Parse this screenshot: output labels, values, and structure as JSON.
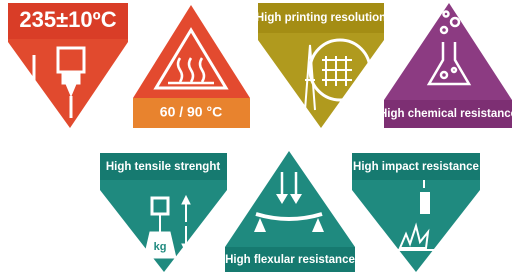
{
  "tiles": [
    {
      "label": "235±10ºC"
    },
    {
      "label": "60 / 90 °C"
    },
    {
      "label": "High printing resolution"
    },
    {
      "label": "High chemical resistance"
    },
    {
      "label": "High tensile strenght"
    },
    {
      "label": "High flexular resistance"
    },
    {
      "label": "High impact resistance"
    }
  ],
  "weight_label": "kg"
}
